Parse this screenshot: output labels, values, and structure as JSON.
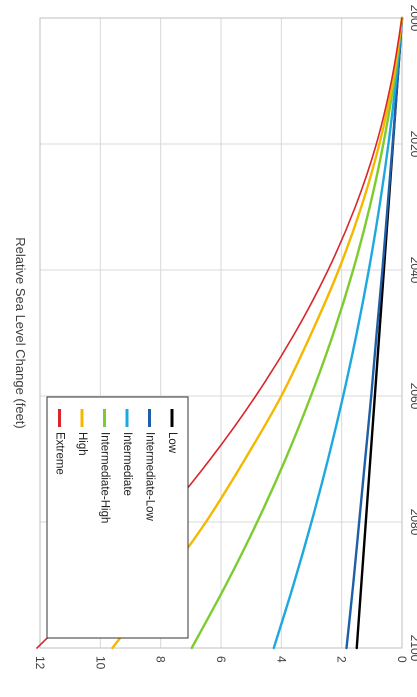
{
  "chart_data": {
    "type": "line",
    "orientation": "rotated 90 degrees clockwise",
    "title": "",
    "xlabel": "",
    "ylabel": "Relative Sea Level Change (feet)",
    "x": [
      2000,
      2010,
      2020,
      2030,
      2040,
      2050,
      2060,
      2070,
      2080,
      2090,
      2100
    ],
    "xlim": [
      2000,
      2100
    ],
    "ylim": [
      0,
      12
    ],
    "x_ticks": [
      "2000",
      "2020",
      "2040",
      "2060",
      "2080",
      "2100"
    ],
    "y_ticks": [
      "0",
      "2",
      "4",
      "6",
      "8",
      "10",
      "12"
    ],
    "grid": true,
    "legend_position": "bottom-left",
    "series": [
      {
        "name": "Low",
        "color": "#000000",
        "values": [
          0,
          0.15,
          0.3,
          0.45,
          0.6,
          0.75,
          0.9,
          1.05,
          1.2,
          1.35,
          1.5
        ]
      },
      {
        "name": "Intermediate-Low",
        "color": "#1f5fa8",
        "values": [
          0,
          0.15,
          0.31,
          0.48,
          0.65,
          0.84,
          1.02,
          1.22,
          1.42,
          1.62,
          1.84
        ]
      },
      {
        "name": "Intermediate",
        "color": "#1ea8df",
        "values": [
          0,
          0.2,
          0.45,
          0.75,
          1.1,
          1.5,
          1.95,
          2.45,
          3.0,
          3.6,
          4.25
        ]
      },
      {
        "name": "Intermediate-High",
        "color": "#7dcc2f",
        "values": [
          0,
          0.26,
          0.62,
          1.07,
          1.62,
          2.27,
          3.02,
          3.86,
          4.8,
          5.84,
          6.97
        ]
      },
      {
        "name": "High",
        "color": "#f5b800",
        "values": [
          0,
          0.3,
          0.75,
          1.35,
          2.1,
          3.0,
          4.0,
          5.2,
          6.5,
          8.0,
          9.6
        ]
      },
      {
        "name": "Extreme",
        "color": "#d9262c",
        "values": [
          0,
          0.35,
          0.85,
          1.55,
          2.45,
          3.55,
          4.85,
          6.35,
          8.05,
          10.0,
          12.1
        ]
      }
    ]
  }
}
